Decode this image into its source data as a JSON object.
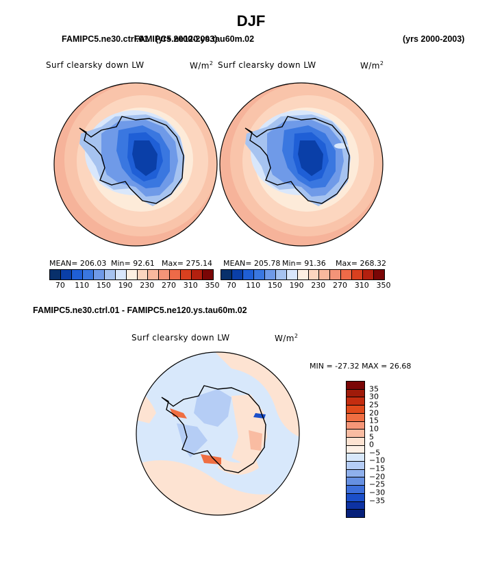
{
  "title": "DJF",
  "header_left": "FAMIPC5.ne30.ctrl.01",
  "header_left_overlap": "FAMIPC5.ne120.ys.tau60m.02",
  "header_left_years": "(yrs 2000-2003)",
  "header_right_years": "(yrs 2000-2003)",
  "panel1": {
    "variable": "Surf clearsky down LW",
    "units": "W/m",
    "units_sup": "2",
    "mean": "MEAN= 206.03",
    "min": "Min=  92.61",
    "max": "Max= 275.14"
  },
  "panel2": {
    "variable": "Surf clearsky down LW",
    "units": "W/m",
    "units_sup": "2",
    "mean": "MEAN= 205.78",
    "min": "Min=  91.36",
    "max": "Max= 268.32"
  },
  "diff": {
    "header": "FAMIPC5.ne30.ctrl.01 - FAMIPC5.ne120.ys.tau60m.02",
    "variable": "Surf clearsky down LW",
    "units": "W/m",
    "units_sup": "2",
    "minmax": "MIN = -27.32  MAX =  26.68"
  },
  "abs_colorbar": {
    "colors": [
      "#08306b",
      "#0a3fa8",
      "#1f5fd6",
      "#3a77e0",
      "#6f9ae8",
      "#a6c3f0",
      "#d9e7fb",
      "#fdf0e2",
      "#fcd6bf",
      "#f9b89d",
      "#f49478",
      "#ee6a48",
      "#d9401f",
      "#b3200f",
      "#7a0606"
    ],
    "tick_labels": [
      "70",
      "110",
      "150",
      "190",
      "230",
      "270",
      "310",
      "350"
    ]
  },
  "diff_colorbar": {
    "colors": [
      "#7a0606",
      "#a01b0a",
      "#c42d10",
      "#e04a1c",
      "#ef6e42",
      "#f59678",
      "#f9bca2",
      "#fde3d2",
      "#fdf0e6",
      "#d8e8fb",
      "#b5cdf5",
      "#8fb0ec",
      "#6690e2",
      "#3d6fdb",
      "#1b4fc9",
      "#0d32a3",
      "#06207a"
    ],
    "tick_labels": [
      "35",
      "30",
      "25",
      "20",
      "15",
      "10",
      "5",
      "0",
      "−5",
      "−10",
      "−15",
      "−20",
      "−25",
      "−30",
      "−35"
    ]
  }
}
